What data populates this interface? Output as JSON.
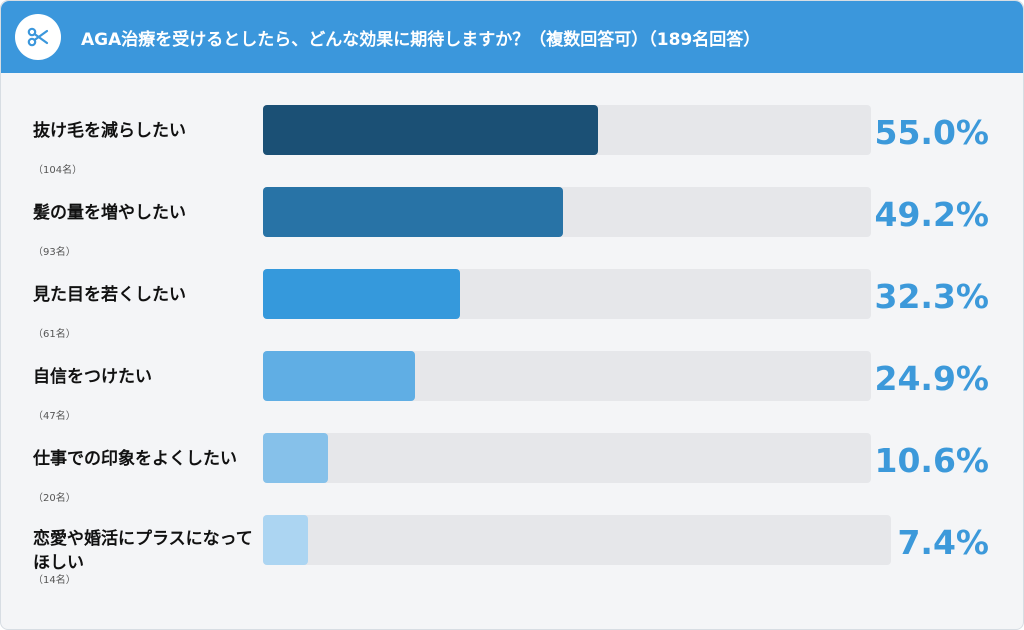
{
  "header": {
    "icon": "scissors-icon",
    "title": "AGA治療を受けるとしたら、どんな効果に期待しますか？（複数回答可）（189名回答）"
  },
  "chart_data": {
    "type": "bar",
    "orientation": "horizontal",
    "ylim": [
      0,
      100
    ],
    "categories": [
      "抜け毛を減らしたい",
      "髪の量を増やしたい",
      "見た目を若くしたい",
      "自信をつけたい",
      "仕事での印象をよくしたい",
      "恋愛や婚活にプラスになってほしい"
    ],
    "values": [
      55.0,
      49.2,
      32.3,
      24.9,
      10.6,
      7.4
    ],
    "value_labels": [
      "55.0%",
      "49.2%",
      "32.3%",
      "24.9%",
      "10.6%",
      "7.4%"
    ],
    "counts": [
      "（104名）",
      "（93名）",
      "（61名）",
      "（47名）",
      "（20名）",
      "（14名）"
    ],
    "colors": [
      "#1b5075",
      "#2873a6",
      "#3599dc",
      "#60aee4",
      "#86c1ea",
      "#acd5f2"
    ],
    "track_color": "#e6e7ea",
    "value_label_color": "#3c99da"
  }
}
